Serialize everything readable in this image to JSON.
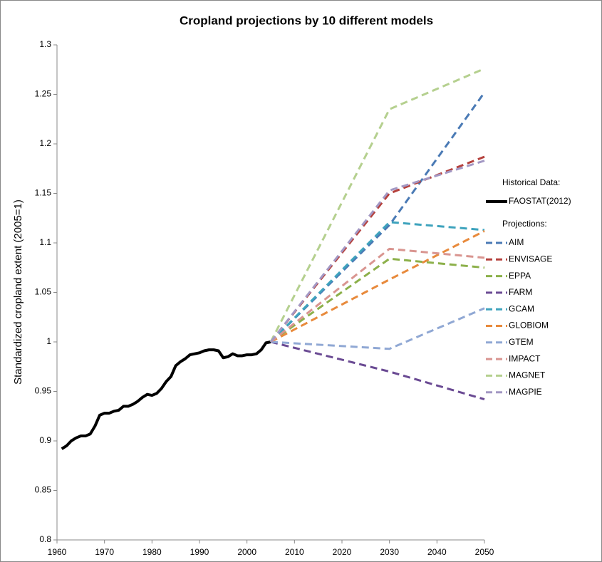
{
  "chart_data": {
    "type": "line",
    "title": "Cropland projections by 10 different models",
    "y_label": "Standardized cropland extent (2005=1)",
    "legend_historical_title": "Historical Data:",
    "legend_projections_title": "Projections:",
    "xlim": [
      1960,
      2050
    ],
    "xticks": [
      1960,
      1970,
      1980,
      1990,
      2000,
      2010,
      2020,
      2030,
      2040,
      2050
    ],
    "ylim": [
      0.8,
      1.3
    ],
    "yticks": [
      0.8,
      0.85,
      0.9,
      0.95,
      1,
      1.05,
      1.1,
      1.15,
      1.2,
      1.25,
      1.3
    ],
    "grid": false,
    "legend": "right",
    "series": [
      {
        "name": "FAOSTAT(2012)",
        "color": "#000000",
        "style": "solid",
        "x": [
          1961,
          1962,
          1963,
          1964,
          1965,
          1966,
          1967,
          1968,
          1969,
          1970,
          1971,
          1972,
          1973,
          1974,
          1975,
          1976,
          1977,
          1978,
          1979,
          1980,
          1981,
          1982,
          1983,
          1984,
          1985,
          1986,
          1987,
          1988,
          1989,
          1990,
          1991,
          1992,
          1993,
          1994,
          1995,
          1996,
          1997,
          1998,
          1999,
          2000,
          2001,
          2002,
          2003,
          2004,
          2005
        ],
        "values": [
          0.892,
          0.895,
          0.9,
          0.903,
          0.905,
          0.905,
          0.907,
          0.915,
          0.926,
          0.928,
          0.928,
          0.93,
          0.931,
          0.935,
          0.935,
          0.937,
          0.94,
          0.944,
          0.947,
          0.946,
          0.948,
          0.953,
          0.96,
          0.965,
          0.976,
          0.98,
          0.983,
          0.987,
          0.988,
          0.989,
          0.991,
          0.992,
          0.992,
          0.991,
          0.984,
          0.985,
          0.988,
          0.986,
          0.986,
          0.987,
          0.987,
          0.988,
          0.992,
          0.999,
          1.0
        ]
      },
      {
        "name": "AIM",
        "color": "#4a7ab5",
        "style": "dashed",
        "x": [
          2005,
          2030,
          2050
        ],
        "values": [
          1,
          1.118,
          1.252
        ]
      },
      {
        "name": "ENVISAGE",
        "color": "#b5413d",
        "style": "dashed",
        "x": [
          2005,
          2030,
          2050
        ],
        "values": [
          1,
          1.15,
          1.187
        ]
      },
      {
        "name": "EPPA",
        "color": "#8cb04a",
        "style": "dashed",
        "x": [
          2005,
          2030,
          2050
        ],
        "values": [
          1,
          1.084,
          1.075
        ]
      },
      {
        "name": "FARM",
        "color": "#6a4a93",
        "style": "dashed",
        "x": [
          2005,
          2030,
          2050
        ],
        "values": [
          1,
          0.97,
          0.942
        ]
      },
      {
        "name": "GCAM",
        "color": "#3ea3bd",
        "style": "dashed",
        "x": [
          2005,
          2030,
          2050
        ],
        "values": [
          1,
          1.121,
          1.113
        ]
      },
      {
        "name": "GLOBIOM",
        "color": "#e88a3c",
        "style": "dashed",
        "x": [
          2005,
          2030,
          2050
        ],
        "values": [
          1,
          1.063,
          1.112
        ]
      },
      {
        "name": "GTEM",
        "color": "#90a8d4",
        "style": "dashed",
        "x": [
          2005,
          2030,
          2050
        ],
        "values": [
          1,
          0.993,
          1.034
        ]
      },
      {
        "name": "IMPACT",
        "color": "#d99590",
        "style": "dashed",
        "x": [
          2005,
          2030,
          2050
        ],
        "values": [
          1,
          1.094,
          1.085
        ]
      },
      {
        "name": "MAGNET",
        "color": "#b5d08f",
        "style": "dashed",
        "x": [
          2005,
          2030,
          2050
        ],
        "values": [
          1,
          1.235,
          1.276
        ]
      },
      {
        "name": "MAGPIE",
        "color": "#a398c4",
        "style": "dashed",
        "x": [
          2005,
          2030,
          2050
        ],
        "values": [
          1,
          1.153,
          1.183
        ]
      }
    ]
  }
}
